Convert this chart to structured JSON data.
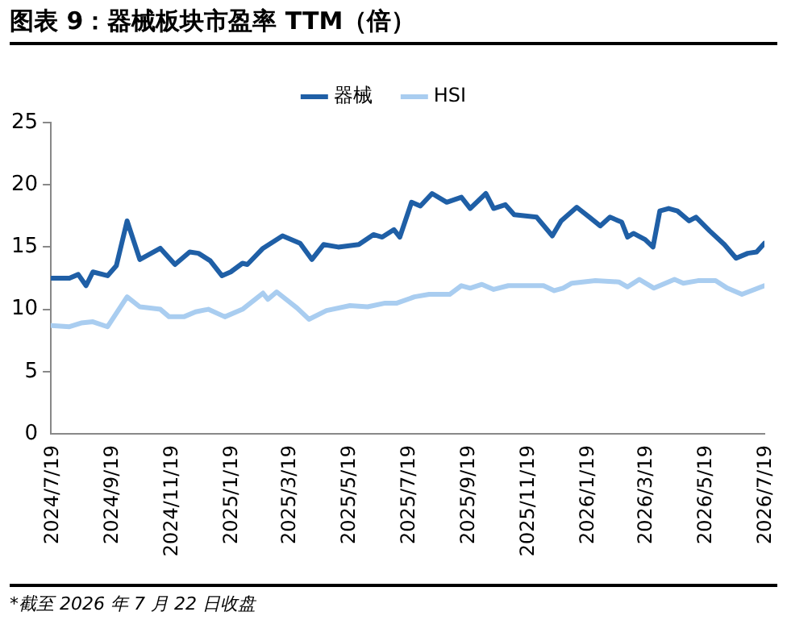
{
  "chart_data": {
    "type": "line",
    "title": "图表 9：器械板块市盈率 TTM（倍）",
    "annotations": [
      "*截至 2026 年 7 月 22 日收盘"
    ],
    "x": [
      "2024-07-20",
      "2024-08-07",
      "2024-08-16",
      "2024-08-24",
      "2024-08-31",
      "2024-09-15",
      "2024-09-24",
      "2024-10-05",
      "2024-10-18",
      "2024-11-08",
      "2024-11-23",
      "2024-12-08",
      "2024-12-17",
      "2024-12-29",
      "2025-01-10",
      "2025-01-19",
      "2025-01-31",
      "2025-02-05",
      "2025-02-21",
      "2025-03-13",
      "2025-03-31",
      "2025-04-12",
      "2025-04-24",
      "2025-05-09",
      "2025-05-30",
      "2025-06-14",
      "2025-06-23",
      "2025-07-05",
      "2025-07-11",
      "2025-07-23",
      "2025-08-01",
      "2025-08-13",
      "2025-08-28",
      "2025-09-12",
      "2025-09-21",
      "2025-10-07",
      "2025-10-15",
      "2025-10-27",
      "2025-11-05",
      "2025-11-28",
      "2025-12-14",
      "2025-12-23",
      "2026-01-08",
      "2026-01-21",
      "2026-02-01",
      "2026-02-11",
      "2026-02-23",
      "2026-03-01",
      "2026-03-07",
      "2026-03-19",
      "2026-03-27",
      "2026-04-03",
      "2026-04-12",
      "2026-04-21",
      "2026-05-03",
      "2026-05-10",
      "2026-05-24",
      "2026-06-08",
      "2026-06-20",
      "2026-07-02",
      "2026-07-11",
      "2026-07-19"
    ],
    "series": [
      {
        "name": "器械",
        "color": "#1f5fa6",
        "values": [
          12.5,
          12.5,
          12.8,
          11.9,
          13.0,
          12.7,
          13.5,
          17.1,
          14.0,
          14.9,
          13.6,
          14.6,
          14.5,
          13.9,
          12.7,
          13.0,
          13.7,
          13.6,
          14.9,
          15.9,
          15.3,
          14.0,
          15.2,
          15.0,
          15.2,
          16.0,
          15.8,
          16.4,
          15.8,
          18.6,
          18.3,
          19.3,
          18.6,
          19.0,
          18.1,
          19.3,
          18.1,
          18.4,
          17.6,
          17.4,
          15.9,
          17.1,
          18.2,
          17.4,
          16.7,
          17.4,
          17.0,
          15.8,
          16.1,
          15.6,
          15.0,
          17.9,
          18.1,
          17.9,
          17.1,
          17.4,
          16.3,
          15.2,
          14.1,
          14.5,
          14.6,
          15.3
        ]
      },
      {
        "name": "HSI",
        "color": "#a9cdf0",
        "x": [
          "2024-07-20",
          "2024-08-07",
          "2024-08-19",
          "2024-08-31",
          "2024-09-15",
          "2024-10-05",
          "2024-10-18",
          "2024-11-08",
          "2024-11-17",
          "2024-12-02",
          "2024-12-14",
          "2024-12-27",
          "2025-01-13",
          "2025-01-31",
          "2025-02-21",
          "2025-02-26",
          "2025-03-07",
          "2025-03-28",
          "2025-04-09",
          "2025-04-27",
          "2025-05-21",
          "2025-06-08",
          "2025-06-26",
          "2025-07-08",
          "2025-07-26",
          "2025-08-10",
          "2025-08-31",
          "2025-09-12",
          "2025-09-21",
          "2025-10-03",
          "2025-10-15",
          "2025-10-30",
          "2025-12-05",
          "2025-12-16",
          "2025-12-25",
          "2026-01-03",
          "2026-01-27",
          "2026-02-20",
          "2026-03-01",
          "2026-03-13",
          "2026-03-28",
          "2026-04-18",
          "2026-04-27",
          "2026-05-12",
          "2026-05-30",
          "2026-06-11",
          "2026-06-26",
          "2026-07-19"
        ],
        "values": [
          8.7,
          8.6,
          8.9,
          9.0,
          8.6,
          11.0,
          10.2,
          10.0,
          9.4,
          9.4,
          9.8,
          10.0,
          9.4,
          10.0,
          11.3,
          10.8,
          11.4,
          10.1,
          9.2,
          9.9,
          10.3,
          10.2,
          10.5,
          10.5,
          11.0,
          11.2,
          11.2,
          11.9,
          11.7,
          12.0,
          11.6,
          11.9,
          11.9,
          11.5,
          11.7,
          12.1,
          12.3,
          12.2,
          11.8,
          12.4,
          11.7,
          12.4,
          12.1,
          12.3,
          12.3,
          11.7,
          11.2,
          11.9
        ]
      }
    ],
    "xlim": [
      "2024-07-19",
      "2026-07-19"
    ],
    "xticks": [
      {
        "value": "2024-07-19",
        "label": "2024/7/19"
      },
      {
        "value": "2024-09-19",
        "label": "2024/9/19"
      },
      {
        "value": "2024-11-19",
        "label": "2024/11/19"
      },
      {
        "value": "2025-01-19",
        "label": "2025/1/19"
      },
      {
        "value": "2025-03-19",
        "label": "2025/3/19"
      },
      {
        "value": "2025-05-19",
        "label": "2025/5/19"
      },
      {
        "value": "2025-07-19",
        "label": "2025/7/19"
      },
      {
        "value": "2025-09-19",
        "label": "2025/9/19"
      },
      {
        "value": "2025-11-19",
        "label": "2025/11/19"
      },
      {
        "value": "2026-01-19",
        "label": "2026/1/19"
      },
      {
        "value": "2026-03-19",
        "label": "2026/3/19"
      },
      {
        "value": "2026-05-19",
        "label": "2026/5/19"
      },
      {
        "value": "2026-07-19",
        "label": "2026/7/19"
      }
    ],
    "ylim": [
      0,
      25
    ],
    "yticks": [
      0,
      5,
      10,
      15,
      20,
      25
    ],
    "grid": false,
    "legend": "top",
    "marker": "none",
    "line_style": "solid"
  }
}
